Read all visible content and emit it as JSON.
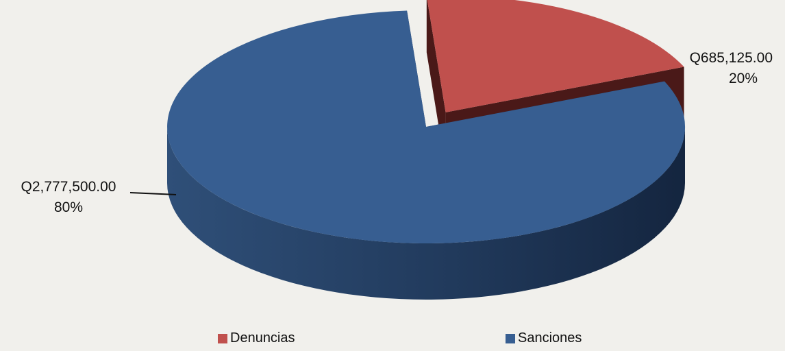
{
  "chart_data": {
    "type": "pie",
    "title": "",
    "slices": [
      {
        "name": "Sanciones",
        "value": 2777500.0,
        "value_label": "Q2,777,500.00",
        "percent_label": "80%",
        "color": "#375e91"
      },
      {
        "name": "Denuncias",
        "value": 685125.0,
        "value_label": "Q685,125.00",
        "percent_label": "20%",
        "color": "#c0504d"
      }
    ],
    "legend": {
      "position": "bottom",
      "items": [
        {
          "label": "Denuncias",
          "color": "#c0504d"
        },
        {
          "label": "Sanciones",
          "color": "#375e91"
        }
      ]
    },
    "style": "3d-exploded"
  }
}
